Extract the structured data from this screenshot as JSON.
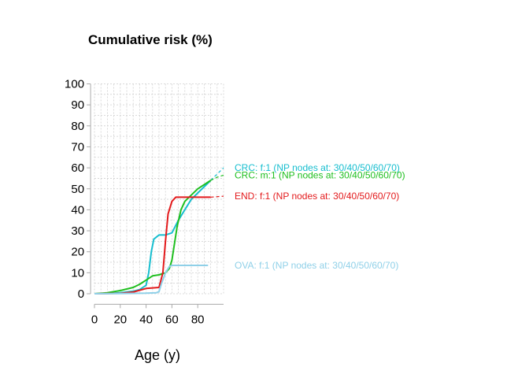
{
  "chart_data": {
    "type": "line",
    "title": "Cumulative risk (%)",
    "xlabel": "Age (y)",
    "ylabel": "",
    "xlim": [
      0,
      100
    ],
    "ylim": [
      0,
      100
    ],
    "x_ticks": [
      0,
      20,
      40,
      60,
      80
    ],
    "y_ticks": [
      0,
      10,
      20,
      30,
      40,
      50,
      60,
      70,
      80,
      90,
      100
    ],
    "grid": true,
    "series": [
      {
        "name": "CRC: f:1 (NP nodes at: 30/40/50/60/70)",
        "color": "#17becf",
        "points": [
          [
            0,
            0
          ],
          [
            10,
            0.1
          ],
          [
            20,
            0.5
          ],
          [
            30,
            1.2
          ],
          [
            35,
            2
          ],
          [
            40,
            4
          ],
          [
            42,
            10
          ],
          [
            44,
            20
          ],
          [
            46,
            26
          ],
          [
            50,
            28
          ],
          [
            55,
            28
          ],
          [
            60,
            29
          ],
          [
            65,
            35
          ],
          [
            70,
            40
          ],
          [
            75,
            45
          ],
          [
            80,
            48
          ],
          [
            85,
            51
          ],
          [
            90,
            54
          ],
          [
            95,
            57
          ],
          [
            100,
            60
          ]
        ]
      },
      {
        "name": "CRC: m:1 (NP nodes at: 30/40/50/60/70)",
        "color": "#1fbf1f",
        "points": [
          [
            0,
            0
          ],
          [
            10,
            0.5
          ],
          [
            20,
            1.5
          ],
          [
            30,
            3
          ],
          [
            35,
            4.5
          ],
          [
            40,
            6.5
          ],
          [
            45,
            8.5
          ],
          [
            50,
            9
          ],
          [
            55,
            10
          ],
          [
            58,
            12
          ],
          [
            60,
            16
          ],
          [
            62,
            24
          ],
          [
            64,
            32
          ],
          [
            67,
            40
          ],
          [
            70,
            44
          ],
          [
            75,
            47
          ],
          [
            80,
            50
          ],
          [
            85,
            52
          ],
          [
            90,
            54
          ],
          [
            95,
            55.5
          ],
          [
            100,
            56.5
          ]
        ]
      },
      {
        "name": "END: f:1 (NP nodes at: 30/40/50/60/70)",
        "color": "#e31a1c",
        "points": [
          [
            0,
            0
          ],
          [
            20,
            0.2
          ],
          [
            30,
            0.8
          ],
          [
            40,
            2.5
          ],
          [
            50,
            3
          ],
          [
            53,
            10
          ],
          [
            55,
            25
          ],
          [
            57,
            38
          ],
          [
            60,
            44
          ],
          [
            63,
            46
          ],
          [
            70,
            46
          ],
          [
            80,
            46
          ],
          [
            90,
            46
          ],
          [
            100,
            46.5
          ]
        ]
      },
      {
        "name": "OVA: f:1 (NP nodes at: 30/40/50/60/70)",
        "color": "#8fd0e8",
        "points": [
          [
            0,
            0
          ],
          [
            20,
            0.1
          ],
          [
            40,
            0.3
          ],
          [
            48,
            0.5
          ],
          [
            50,
            1
          ],
          [
            52,
            5
          ],
          [
            55,
            10
          ],
          [
            58,
            13
          ],
          [
            60,
            13.5
          ],
          [
            70,
            13.5
          ],
          [
            80,
            13.5
          ],
          [
            88,
            13.5
          ],
          [
            100,
            13.5
          ]
        ]
      }
    ]
  }
}
